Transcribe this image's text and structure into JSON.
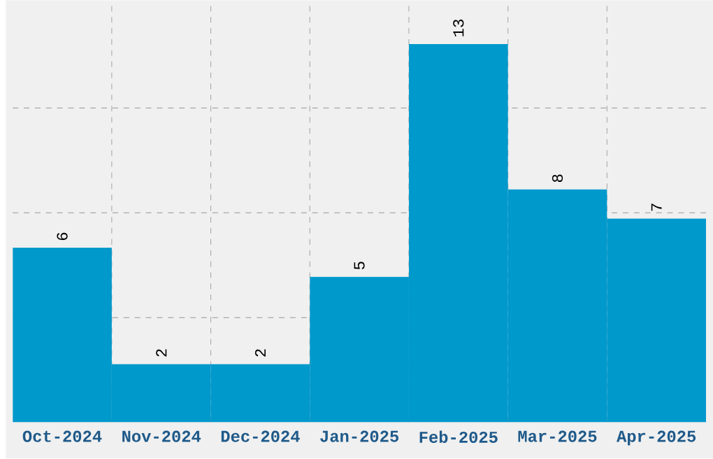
{
  "chart_data": {
    "type": "bar",
    "categories": [
      "Oct-2024",
      "Nov-2024",
      "Dec-2024",
      "Jan-2025",
      "Feb-2025",
      "Mar-2025",
      "Apr-2025"
    ],
    "values": [
      6,
      2,
      2,
      5,
      13,
      8,
      7
    ],
    "color": "#0099cc",
    "data_labels": true,
    "grid": true,
    "ylim": [
      0,
      14.5
    ],
    "yticks": [
      {
        "value": 3.6,
        "label": null
      },
      {
        "value": 7.2,
        "label": null
      },
      {
        "value": 10.8,
        "label": null
      }
    ],
    "tick_labels": "x"
  }
}
